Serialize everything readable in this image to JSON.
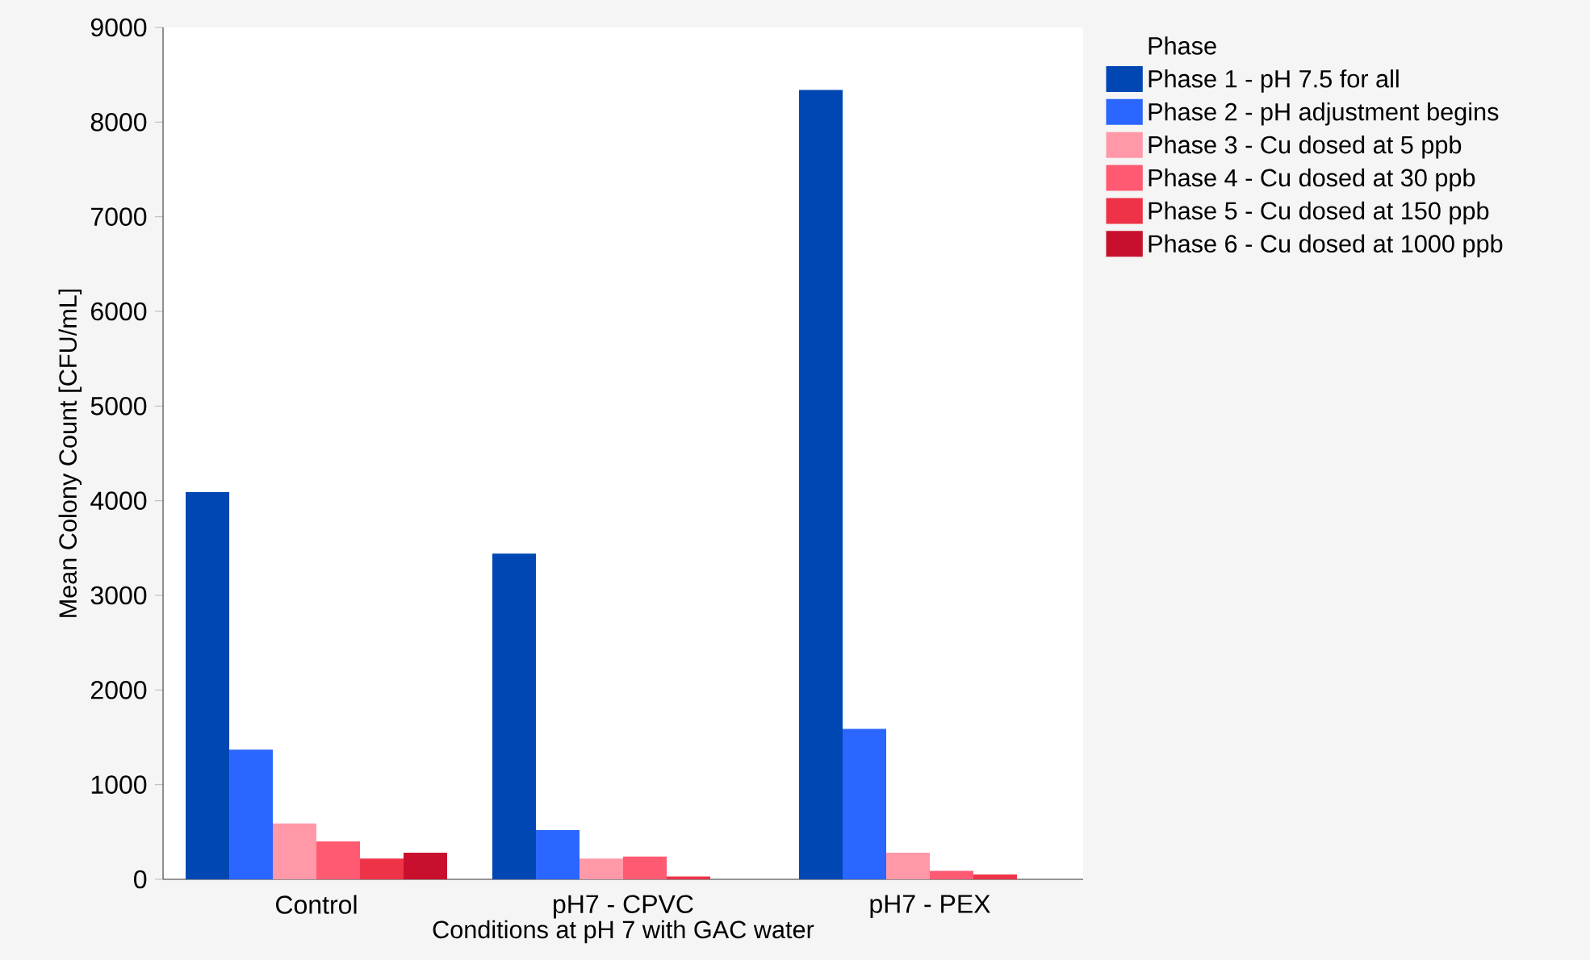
{
  "chart_data": {
    "type": "bar",
    "xlabel": "Conditions at pH 7 with GAC water",
    "ylabel": "Mean Colony Count [CFU/mL]",
    "legend_title": "Phase",
    "legend": "top right",
    "grid": false,
    "categories": [
      "Control",
      "pH7 - CPVC",
      "pH7 - PEX"
    ],
    "ylim": [
      0,
      9000
    ],
    "yticks": [
      0,
      1000,
      2000,
      3000,
      4000,
      5000,
      6000,
      7000,
      8000,
      9000
    ],
    "series": [
      {
        "name": "Phase 1 - pH 7.5 for all",
        "color": "#0047b3",
        "values": [
          4090,
          3440,
          8340
        ]
      },
      {
        "name": "Phase 2 - pH adjustment begins",
        "color": "#2a66ff",
        "values": [
          1370,
          520,
          1590
        ]
      },
      {
        "name": "Phase 3 - Cu dosed at 5 ppb",
        "color": "#ff99a8",
        "values": [
          590,
          220,
          280
        ]
      },
      {
        "name": "Phase 4 - Cu dosed at 30 ppb",
        "color": "#ff5a72",
        "values": [
          400,
          240,
          90
        ]
      },
      {
        "name": "Phase 5 - Cu dosed at 150 ppb",
        "color": "#ee3348",
        "values": [
          220,
          30,
          50
        ]
      },
      {
        "name": "Phase 6 - Cu dosed at 1000 ppb",
        "color": "#c8102e",
        "values": [
          280,
          0,
          0
        ]
      }
    ]
  }
}
